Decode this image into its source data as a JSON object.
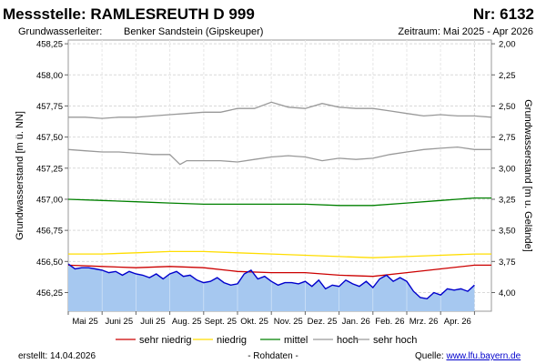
{
  "header": {
    "title": "Messstelle: RAMLESREUTH D 999",
    "number": "Nr: 6132",
    "aquifer_label": "Grundwasserleiter:",
    "aquifer_value": "Benker Sandstein (Gipskeuper)",
    "period": "Zeitraum: Mai 2025 - Apr 2026"
  },
  "footer": {
    "created": "erstellt:  14.04.2026",
    "raw_data": "- Rohdaten -",
    "source_label": "Quelle: ",
    "source_link": "www.lfu.bayern.de"
  },
  "colors": {
    "sehr_niedrig": "#cc0000",
    "niedrig": "#ffdd00",
    "mittel": "#008000",
    "hoch": "#999999",
    "sehr_hoch": "#999999",
    "measured_line": "#0000cc",
    "measured_fill": "#a6c8f0",
    "grid": "#d9d9d9"
  },
  "chart_data": {
    "type": "line",
    "title": "Messstelle: RAMLESREUTH D 999",
    "xlabel": "",
    "ylabel": "Grundwasserstand [m ü. NN]",
    "y2label": "Grundwasserstand [m u. Gelände]",
    "ylim": [
      456.1,
      458.28
    ],
    "yticks": [
      "456,25",
      "456,50",
      "456,75",
      "457,00",
      "457,25",
      "457,50",
      "457,75",
      "458,00",
      "458,25"
    ],
    "y2ticks": [
      "2,00",
      "2,25",
      "2,50",
      "2,75",
      "3,00",
      "3,25",
      "3,50",
      "3,75",
      "4,00"
    ],
    "y2_reference": 460.25,
    "xlim": [
      0,
      12.5
    ],
    "x_tick_labels": [
      "Mai 25",
      "Juni 25",
      "Juli 25",
      "Aug. 25",
      "Sept. 25",
      "Okt. 25",
      "Nov. 25",
      "Dez. 25",
      "Jan. 26",
      "Feb. 26",
      "Mrz. 26",
      "Apr. 26"
    ],
    "legend": [
      "sehr niedrig",
      "niedrig",
      "mittel",
      "hoch",
      "sehr hoch"
    ],
    "series": [
      {
        "name": "sehr hoch",
        "key": "sehr_hoch",
        "x": [
          0,
          0.5,
          1,
          1.5,
          2,
          2.5,
          3,
          3.5,
          4,
          4.5,
          5,
          5.5,
          6,
          6.5,
          7,
          7.5,
          8,
          8.5,
          9,
          9.5,
          10,
          10.5,
          11,
          11.5,
          12,
          12.5
        ],
        "values": [
          457.66,
          457.66,
          457.65,
          457.66,
          457.66,
          457.67,
          457.68,
          457.69,
          457.7,
          457.7,
          457.73,
          457.73,
          457.78,
          457.74,
          457.73,
          457.77,
          457.74,
          457.73,
          457.73,
          457.71,
          457.69,
          457.67,
          457.68,
          457.67,
          457.67,
          457.66
        ]
      },
      {
        "name": "hoch",
        "key": "hoch",
        "x": [
          0,
          0.5,
          1,
          1.5,
          2,
          2.5,
          3,
          3.3,
          3.5,
          4,
          4.5,
          5,
          5.5,
          6,
          6.5,
          7,
          7.5,
          8,
          8.5,
          9,
          9.5,
          10,
          10.5,
          11,
          11.5,
          12,
          12.5
        ],
        "values": [
          457.4,
          457.39,
          457.38,
          457.38,
          457.37,
          457.36,
          457.36,
          457.28,
          457.31,
          457.31,
          457.31,
          457.3,
          457.32,
          457.34,
          457.35,
          457.34,
          457.31,
          457.33,
          457.32,
          457.33,
          457.36,
          457.38,
          457.4,
          457.41,
          457.42,
          457.4,
          457.4
        ]
      },
      {
        "name": "mittel",
        "key": "mittel",
        "x": [
          0,
          1,
          2,
          3,
          4,
          5,
          6,
          7,
          8,
          9,
          10,
          11,
          12,
          12.5
        ],
        "values": [
          457.0,
          456.99,
          456.98,
          456.97,
          456.96,
          456.96,
          456.96,
          456.96,
          456.95,
          456.95,
          456.97,
          456.99,
          457.01,
          457.01
        ]
      },
      {
        "name": "niedrig",
        "key": "niedrig",
        "x": [
          0,
          1,
          2,
          3,
          4,
          5,
          6,
          7,
          8,
          9,
          10,
          11,
          12,
          12.5
        ],
        "values": [
          456.56,
          456.56,
          456.57,
          456.58,
          456.58,
          456.57,
          456.56,
          456.55,
          456.54,
          456.53,
          456.54,
          456.55,
          456.56,
          456.56
        ]
      },
      {
        "name": "sehr niedrig",
        "key": "sehr_niedrig",
        "x": [
          0,
          1,
          2,
          3,
          4,
          5,
          6,
          7,
          8,
          9,
          10,
          11,
          12,
          12.5
        ],
        "values": [
          456.47,
          456.46,
          456.45,
          456.46,
          456.45,
          456.42,
          456.41,
          456.41,
          456.39,
          456.38,
          456.41,
          456.44,
          456.47,
          456.47
        ]
      },
      {
        "name": "Messwerte",
        "key": "measured_line",
        "x": [
          0,
          0.2,
          0.4,
          0.6,
          0.8,
          1.0,
          1.2,
          1.4,
          1.6,
          1.8,
          2.0,
          2.2,
          2.4,
          2.6,
          2.8,
          3.0,
          3.2,
          3.4,
          3.6,
          3.8,
          4.0,
          4.2,
          4.4,
          4.6,
          4.8,
          5.0,
          5.2,
          5.4,
          5.6,
          5.8,
          6.0,
          6.2,
          6.4,
          6.6,
          6.8,
          7.0,
          7.2,
          7.4,
          7.6,
          7.8,
          8.0,
          8.2,
          8.4,
          8.6,
          8.8,
          9.0,
          9.2,
          9.4,
          9.6,
          9.8,
          10.0,
          10.2,
          10.4,
          10.6,
          10.8,
          11.0,
          11.2,
          11.4,
          11.6,
          11.8,
          12.0
        ],
        "values": [
          456.48,
          456.44,
          456.45,
          456.45,
          456.44,
          456.43,
          456.41,
          456.42,
          456.39,
          456.42,
          456.4,
          456.39,
          456.37,
          456.4,
          456.36,
          456.4,
          456.42,
          456.38,
          456.39,
          456.35,
          456.33,
          456.34,
          456.37,
          456.33,
          456.31,
          456.32,
          456.4,
          456.43,
          456.36,
          456.38,
          456.34,
          456.31,
          456.33,
          456.33,
          456.32,
          456.34,
          456.3,
          456.35,
          456.28,
          456.31,
          456.3,
          456.35,
          456.32,
          456.3,
          456.34,
          456.29,
          456.36,
          456.39,
          456.34,
          456.37,
          456.34,
          456.26,
          456.21,
          456.2,
          456.25,
          456.23,
          456.28,
          456.27,
          456.28,
          456.26,
          456.31
        ]
      }
    ]
  }
}
